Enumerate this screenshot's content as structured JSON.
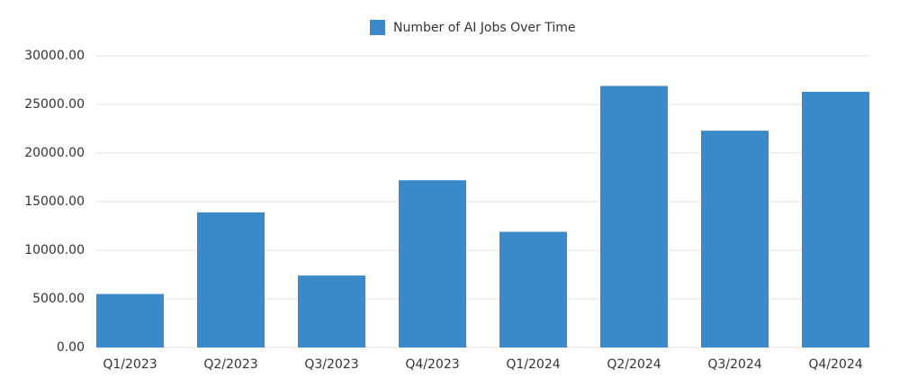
{
  "chart_data": {
    "type": "bar",
    "legend": "Number of AI Jobs Over Time",
    "categories": [
      "Q1/2023",
      "Q2/2023",
      "Q3/2023",
      "Q4/2023",
      "Q1/2024",
      "Q2/2024",
      "Q3/2024",
      "Q4/2024"
    ],
    "values": [
      5500,
      13900,
      7400,
      17200,
      11900,
      26900,
      22300,
      26300
    ],
    "color": "#3a89c9",
    "ylim": [
      0,
      30000
    ],
    "yticks": [
      {
        "value": 0,
        "label": "0.00"
      },
      {
        "value": 5000,
        "label": "5000.00"
      },
      {
        "value": 10000,
        "label": "10000.00"
      },
      {
        "value": 15000,
        "label": "15000.00"
      },
      {
        "value": 20000,
        "label": "20000.00"
      },
      {
        "value": 25000,
        "label": "25000.00"
      },
      {
        "value": 30000,
        "label": "30000.00"
      }
    ],
    "grid": true
  }
}
